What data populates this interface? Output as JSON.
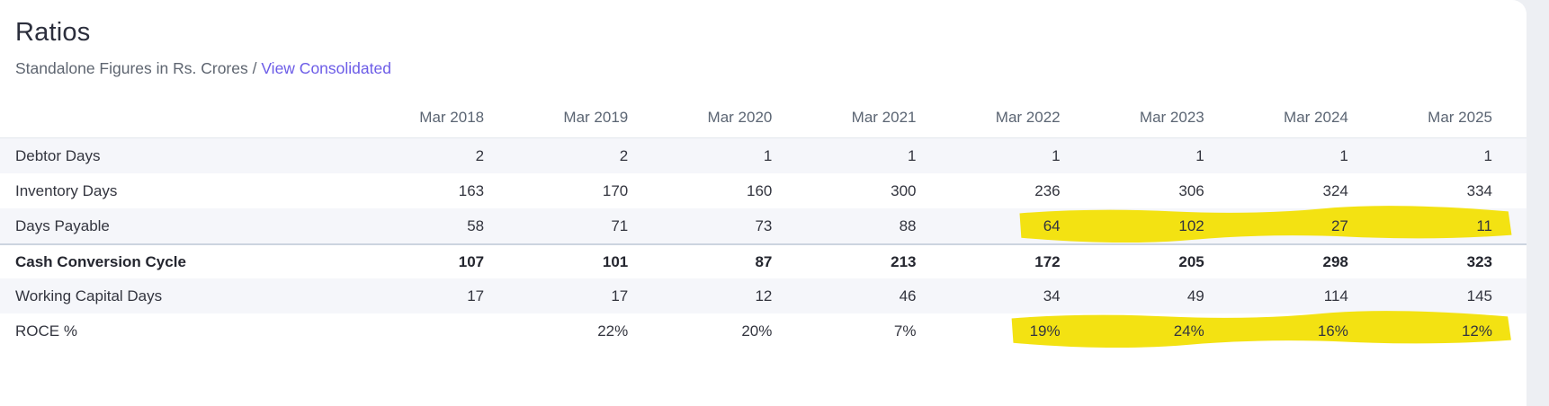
{
  "header": {
    "title": "Ratios",
    "subtitle": "Standalone Figures in Rs. Crores",
    "separator": " / ",
    "link_label": "View Consolidated"
  },
  "table": {
    "corner_label": "",
    "columns": [
      "Mar 2018",
      "Mar 2019",
      "Mar 2020",
      "Mar 2021",
      "Mar 2022",
      "Mar 2023",
      "Mar 2024",
      "Mar 2025"
    ],
    "rows": [
      {
        "label": "Debtor Days",
        "values": [
          "2",
          "2",
          "1",
          "1",
          "1",
          "1",
          "1",
          "1"
        ],
        "bold": false,
        "striped": true,
        "highlight": null
      },
      {
        "label": "Inventory Days",
        "values": [
          "163",
          "170",
          "160",
          "300",
          "236",
          "306",
          "324",
          "334"
        ],
        "bold": false,
        "striped": false,
        "highlight": null
      },
      {
        "label": "Days Payable",
        "values": [
          "58",
          "71",
          "73",
          "88",
          "64",
          "102",
          "27",
          "11"
        ],
        "bold": false,
        "striped": true,
        "highlight": {
          "columns": [
            "Mar 2022",
            "Mar 2023",
            "Mar 2024",
            "Mar 2025"
          ],
          "left_pct": 66.4
        }
      },
      {
        "label": "Cash Conversion Cycle",
        "values": [
          "107",
          "101",
          "87",
          "213",
          "172",
          "205",
          "298",
          "323"
        ],
        "bold": true,
        "striped": false,
        "highlight": null
      },
      {
        "label": "Working Capital Days",
        "values": [
          "17",
          "17",
          "12",
          "46",
          "34",
          "49",
          "114",
          "145"
        ],
        "bold": false,
        "striped": true,
        "highlight": null
      },
      {
        "label": "ROCE %",
        "values": [
          "",
          "22%",
          "20%",
          "7%",
          "19%",
          "24%",
          "16%",
          "12%"
        ],
        "bold": false,
        "striped": false,
        "highlight": {
          "columns": [
            "Mar 2022",
            "Mar 2023",
            "Mar 2024",
            "Mar 2025"
          ],
          "left_pct": 65.9
        }
      }
    ]
  },
  "colors": {
    "accent_link": "#6c5ce7",
    "highlighter_yellow": "#f2e005"
  }
}
